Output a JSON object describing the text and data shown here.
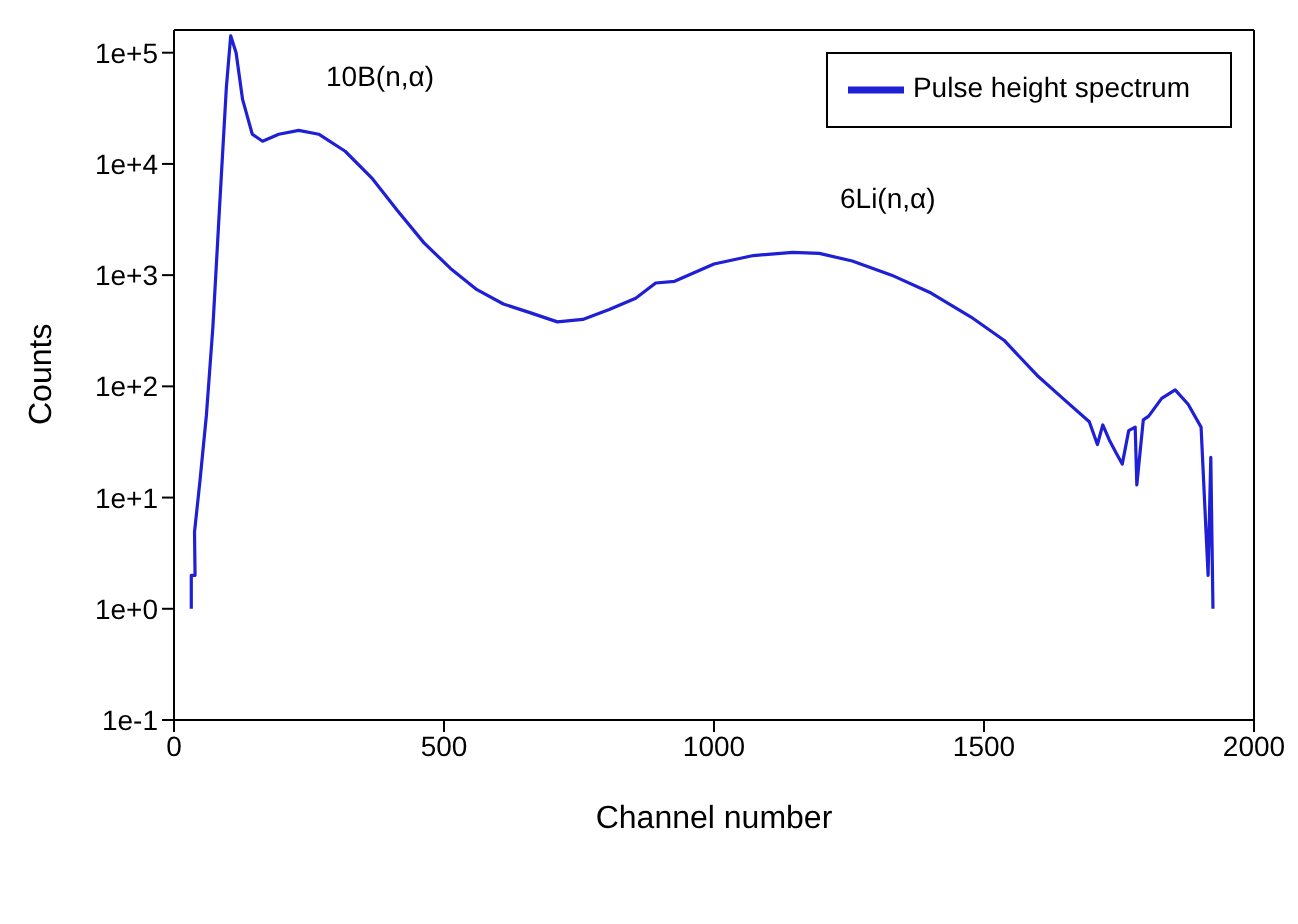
{
  "chart_data": {
    "type": "line",
    "xlabel": "Channel number",
    "ylabel": "Counts",
    "log": "y",
    "xlim": [
      0,
      2000
    ],
    "xticks": [
      0,
      500,
      1000,
      1500,
      2000
    ],
    "ylim": [
      0.1,
      160000
    ],
    "yticks": [
      {
        "value": 0.1,
        "label": "1e-1"
      },
      {
        "value": 1,
        "label": "1e+0"
      },
      {
        "value": 10,
        "label": "1e+1"
      },
      {
        "value": 100,
        "label": "1e+2"
      },
      {
        "value": 1000,
        "label": "1e+3"
      },
      {
        "value": 10000,
        "label": "1e+4"
      },
      {
        "value": 100000,
        "label": "1e+5"
      }
    ],
    "legend": "top right",
    "marker": "none",
    "line_style": "solid",
    "annotations": [
      "10B(n,α)",
      "6Li(n,α)"
    ],
    "series": [
      {
        "name": "Pulse height spectrum",
        "color": "#1f1fd6",
        "x": [
          32,
          32,
          39,
          38,
          48,
          60,
          72,
          84,
          97,
          105,
          115,
          127,
          145,
          164,
          194,
          231,
          268,
          317,
          366,
          414,
          463,
          512,
          561,
          610,
          659,
          710,
          757,
          806,
          855,
          892,
          927,
          1000,
          1073,
          1146,
          1195,
          1256,
          1329,
          1402,
          1476,
          1537,
          1598,
          1646,
          1695,
          1710,
          1720,
          1732,
          1745,
          1756,
          1768,
          1780,
          1783,
          1795,
          1805,
          1829,
          1854,
          1878,
          1902,
          1915,
          1920,
          1924
        ],
        "values": [
          1,
          2,
          2,
          4.9,
          14,
          55,
          340,
          3800,
          49000,
          142000,
          100000,
          38000,
          18500,
          16000,
          18500,
          20000,
          18500,
          13000,
          7500,
          3800,
          1950,
          1150,
          740,
          550,
          460,
          380,
          400,
          490,
          620,
          850,
          880,
          1260,
          1500,
          1600,
          1570,
          1340,
          1000,
          690,
          420,
          260,
          126,
          78,
          48,
          30,
          45,
          33,
          25,
          20,
          40,
          43,
          13,
          50,
          54,
          78,
          93,
          69,
          43,
          2,
          23,
          1
        ]
      }
    ]
  }
}
